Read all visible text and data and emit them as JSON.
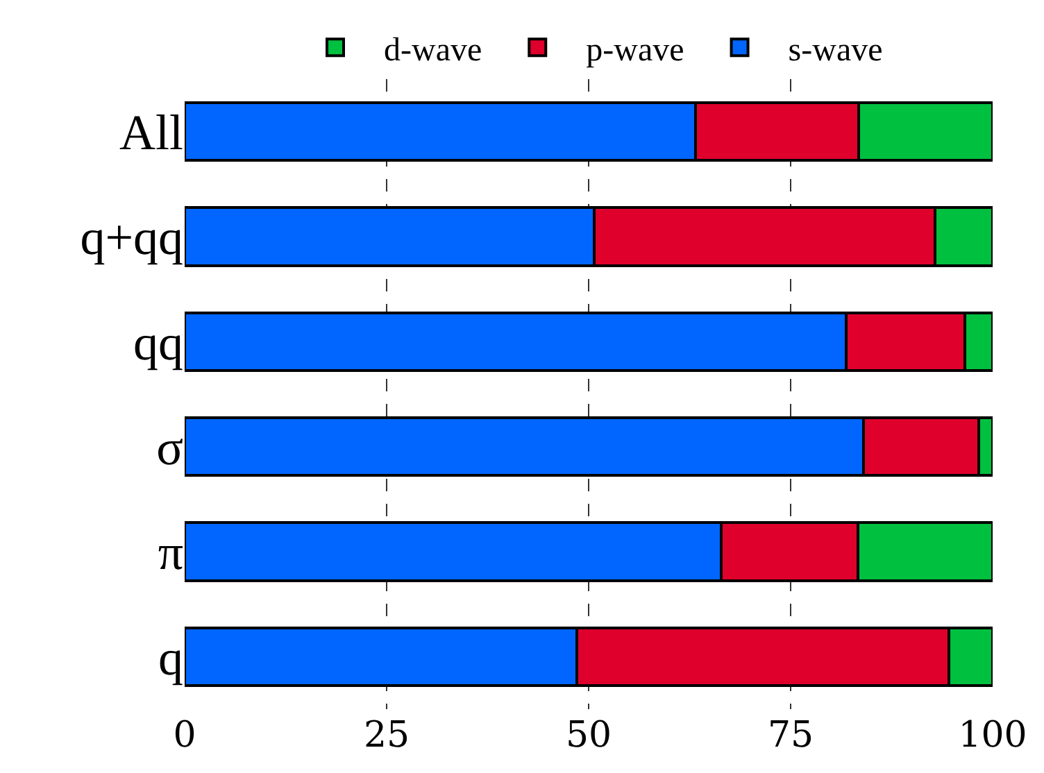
{
  "chart_data": {
    "type": "bar",
    "orientation": "horizontal",
    "stacked": true,
    "categories": [
      "All",
      "q+qq",
      "qq",
      "σ",
      "π",
      "q"
    ],
    "series": [
      {
        "name": "s-wave",
        "color": "#0066ff",
        "values": [
          63.2,
          50.7,
          81.9,
          84.0,
          66.4,
          48.5
        ]
      },
      {
        "name": "p-wave",
        "color": "#e0002c",
        "values": [
          20.2,
          42.2,
          14.7,
          14.3,
          16.9,
          46.1
        ]
      },
      {
        "name": "d-wave",
        "color": "#00c040",
        "values": [
          16.6,
          7.1,
          3.4,
          1.7,
          16.7,
          5.4
        ]
      }
    ],
    "xlim": [
      0,
      100
    ],
    "xticks": [
      0,
      25,
      50,
      75,
      100
    ],
    "grid": "x",
    "legend": "top"
  }
}
